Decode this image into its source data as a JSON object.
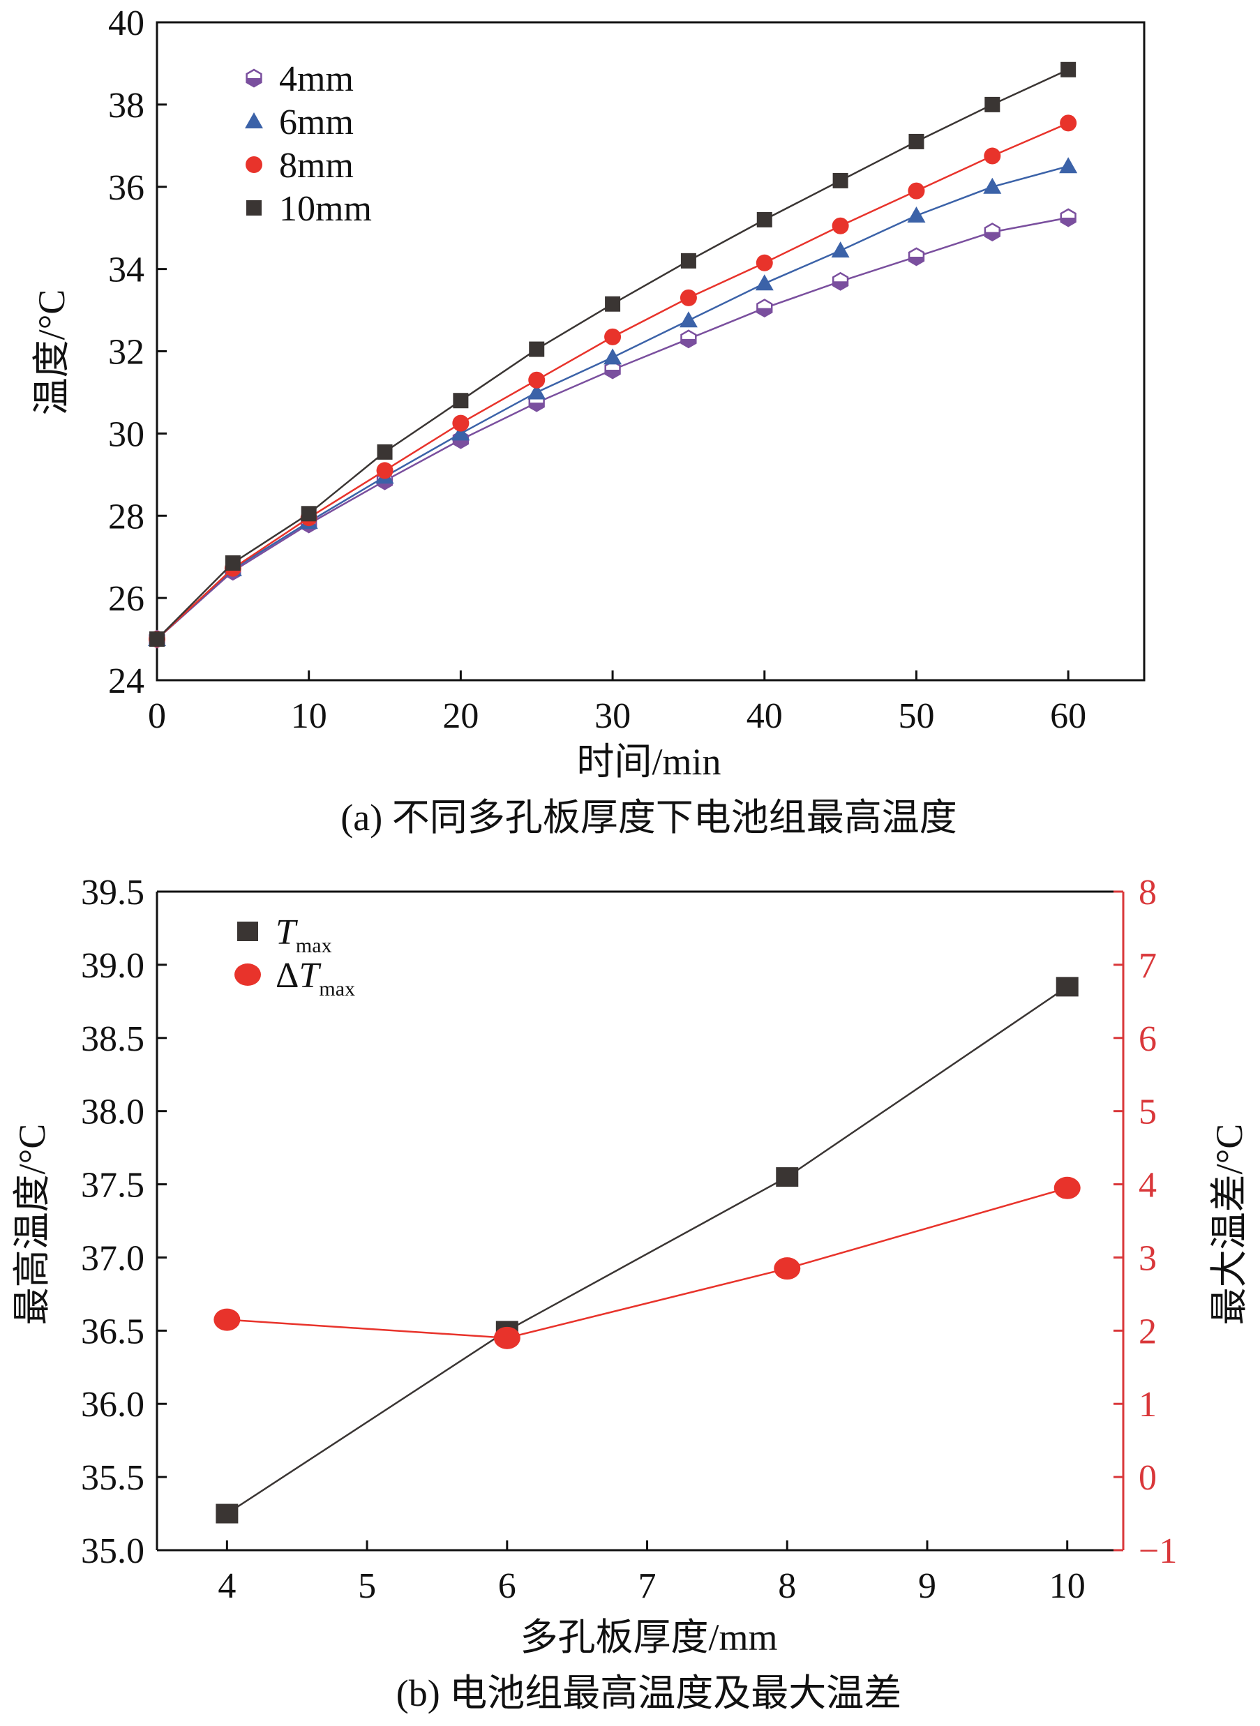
{
  "chart_data": [
    {
      "type": "line",
      "caption": "(a) 不同多孔板厚度下电池组最高温度",
      "xlabel": "时间/min",
      "ylabel": "温度/°C",
      "xlim": [
        0,
        65
      ],
      "ylim": [
        24,
        40
      ],
      "xticks": [
        0,
        10,
        20,
        30,
        40,
        50,
        60
      ],
      "yticks": [
        24,
        26,
        28,
        30,
        32,
        34,
        36,
        38,
        40
      ],
      "x": [
        0,
        5,
        10,
        15,
        20,
        25,
        30,
        35,
        40,
        45,
        50,
        55,
        60
      ],
      "legend_position": "top-left",
      "grid": false,
      "series": [
        {
          "name": "4mm",
          "color": "#7a4f9e",
          "marker": "hexagon",
          "values": [
            25.0,
            26.65,
            27.8,
            28.85,
            29.85,
            30.75,
            31.55,
            32.3,
            33.05,
            33.7,
            34.3,
            34.9,
            35.25
          ]
        },
        {
          "name": "6mm",
          "color": "#3b62a8",
          "marker": "triangle",
          "values": [
            25.0,
            26.7,
            27.85,
            28.95,
            30.0,
            31.0,
            31.85,
            32.75,
            33.65,
            34.45,
            35.3,
            36.0,
            36.5
          ]
        },
        {
          "name": "8mm",
          "color": "#e8332b",
          "marker": "circle",
          "values": [
            25.0,
            26.72,
            27.95,
            29.1,
            30.25,
            31.3,
            32.35,
            33.3,
            34.15,
            35.05,
            35.9,
            36.75,
            37.55
          ]
        },
        {
          "name": "10mm",
          "color": "#3a3533",
          "marker": "square",
          "values": [
            25.0,
            26.85,
            28.05,
            29.55,
            30.8,
            32.05,
            33.15,
            34.2,
            35.2,
            36.15,
            37.1,
            38.0,
            38.85
          ]
        }
      ]
    },
    {
      "type": "line",
      "caption": "(b) 电池组最高温度及最大温差",
      "xlabel": "多孔板厚度/mm",
      "ylabel": "最高温度/°C",
      "ylabel_right": "最大温差/°C",
      "xlim": [
        3.5,
        10.4
      ],
      "ylim": [
        35.0,
        39.5
      ],
      "ylim_right": [
        -1,
        8
      ],
      "xticks": [
        4,
        5,
        6,
        7,
        8,
        9,
        10
      ],
      "yticks": [
        "35.0",
        "35.5",
        "36.0",
        "36.5",
        "37.0",
        "37.5",
        "38.0",
        "38.5",
        "39.0",
        "39.5"
      ],
      "yticks_right": [
        "−1",
        "0",
        "1",
        "2",
        "3",
        "4",
        "5",
        "6",
        "7",
        "8"
      ],
      "legend_position": "top-left",
      "grid": false,
      "x": [
        4,
        6,
        8,
        10
      ],
      "series": [
        {
          "name": "T",
          "subscript": "max",
          "color": "#3a3533",
          "marker": "square",
          "axis": "left",
          "values": [
            35.25,
            36.5,
            37.55,
            38.85
          ]
        },
        {
          "name": "ΔT",
          "subscript": "max",
          "color": "#e8332b",
          "marker": "ellipse",
          "axis": "right",
          "values": [
            2.15,
            1.9,
            2.85,
            3.95
          ]
        }
      ],
      "right_axis_color": "#d9373a"
    }
  ]
}
